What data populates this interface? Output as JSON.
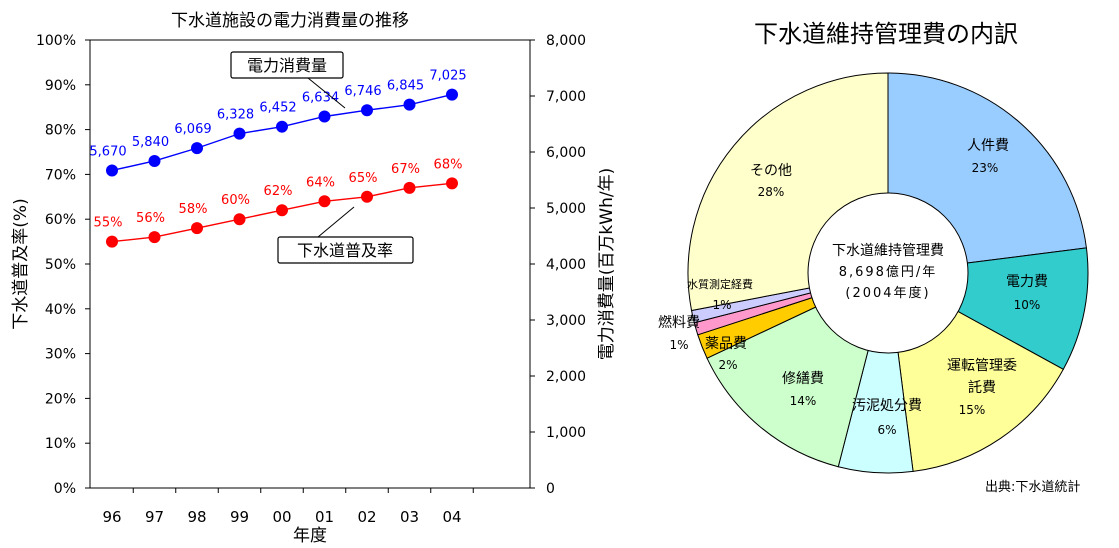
{
  "chart_data": [
    {
      "type": "line",
      "title": "下水道施設の電力消費量の推移",
      "xlabel": "年度",
      "ylabel_left": "下水道普及率(%)",
      "ylabel_right": "電力消費量(百万kWh/年)",
      "categories": [
        "96",
        "97",
        "98",
        "99",
        "00",
        "01",
        "02",
        "03",
        "04"
      ],
      "y_left_ticks": [
        "0%",
        "10%",
        "20%",
        "30%",
        "40%",
        "50%",
        "60%",
        "70%",
        "80%",
        "90%",
        "100%"
      ],
      "y_right_ticks": [
        "0",
        "1,000",
        "2,000",
        "3,000",
        "4,000",
        "5,000",
        "6,000",
        "7,000",
        "8,000"
      ],
      "ylim_left": [
        0,
        100
      ],
      "ylim_right": [
        0,
        8000
      ],
      "grid": false,
      "series": [
        {
          "name": "電力消費量",
          "axis": "right",
          "color": "#0000ff",
          "values": [
            5670,
            5840,
            6069,
            6328,
            6452,
            6634,
            6746,
            6845,
            7025
          ],
          "labels": [
            "5,670",
            "5,840",
            "6,069",
            "6,328",
            "6,452",
            "6,634",
            "6,746",
            "6,845",
            "7,025"
          ]
        },
        {
          "name": "下水道普及率",
          "axis": "left",
          "color": "#ff0000",
          "values": [
            55,
            56,
            58,
            60,
            62,
            64,
            65,
            67,
            68
          ],
          "labels": [
            "55%",
            "56%",
            "58%",
            "60%",
            "62%",
            "64%",
            "65%",
            "67%",
            "68%"
          ]
        }
      ]
    },
    {
      "type": "pie",
      "title": "下水道維持管理費の内訳",
      "center_label": [
        "下水道維持管理費",
        "8,698億円/年",
        "(2004年度)"
      ],
      "slices": [
        {
          "label": "人件費",
          "value": 23,
          "value_label": "23%",
          "color": "#99ccff"
        },
        {
          "label": "電力費",
          "value": 10,
          "value_label": "10%",
          "color": "#33cccc"
        },
        {
          "label": "運転管理委託費",
          "value": 15,
          "value_label": "15%",
          "color": "#ffff99"
        },
        {
          "label": "汚泥処分費",
          "value": 6,
          "value_label": "6%",
          "color": "#ccffff"
        },
        {
          "label": "修繕費",
          "value": 14,
          "value_label": "14%",
          "color": "#ccffcc"
        },
        {
          "label": "薬品費",
          "value": 2,
          "value_label": "2%",
          "color": "#ffcc00"
        },
        {
          "label": "燃料費",
          "value": 1,
          "value_label": "1%",
          "color": "#ff99cc"
        },
        {
          "label": "水質測定経費",
          "value": 1,
          "value_label": "1%",
          "color": "#ccccff"
        },
        {
          "label": "その他",
          "value": 28,
          "value_label": "28%",
          "color": "#ffffcc"
        }
      ]
    }
  ],
  "source_note": "出典:下水道統計"
}
